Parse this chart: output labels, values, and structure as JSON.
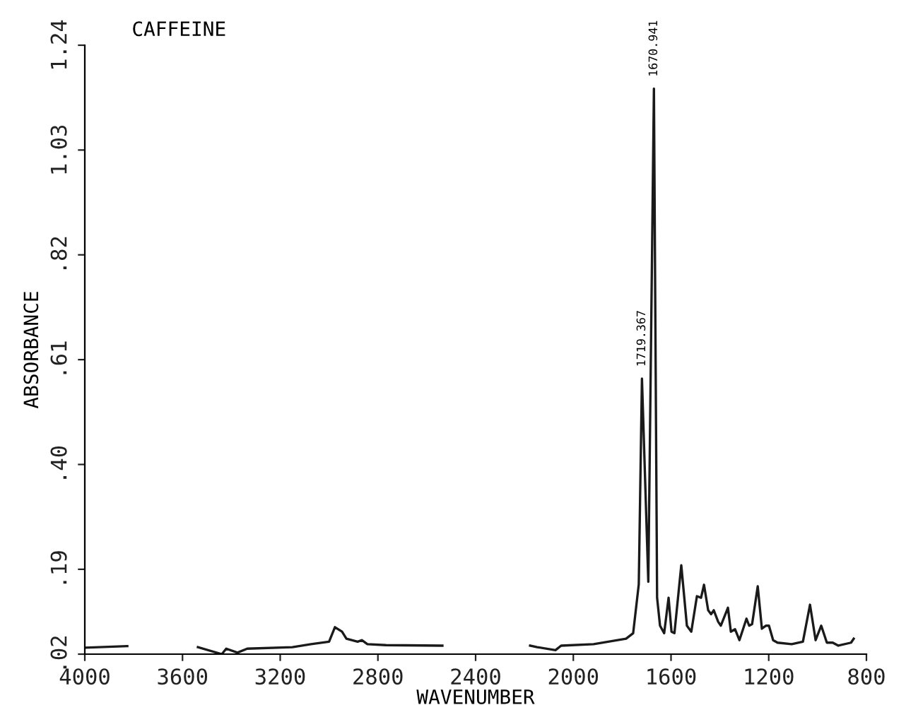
{
  "chart_data": {
    "type": "line",
    "title": "CAFFEINE",
    "xlabel": "WAVENUMBER",
    "ylabel": "ABSORBANCE",
    "xlim": [
      4000,
      800
    ],
    "xticks": [
      {
        "value": 4000,
        "label": "4000"
      },
      3600,
      3200,
      2800,
      2400,
      2000,
      1600,
      1200,
      800
    ],
    "ylim": [
      0.02,
      1.24
    ],
    "yticks": [
      {
        "value": 0.02,
        "label": ".02"
      },
      {
        "value": 0.19,
        "label": ".19"
      },
      {
        "value": 0.4,
        "label": ".40"
      },
      {
        "value": 0.61,
        "label": ".61"
      },
      {
        "value": 0.82,
        "label": ".82"
      },
      {
        "value": 1.03,
        "label": "1.03"
      },
      {
        "value": 1.24,
        "label": "1.24"
      }
    ],
    "grid": false,
    "legend": false,
    "marker": "none",
    "line_style": "solid",
    "annotations": [
      {
        "text": "1719.367",
        "x": 1719,
        "y": 0.572
      },
      {
        "text": "1670.941",
        "x": 1670,
        "y": 1.153
      }
    ],
    "series": [
      {
        "color": "#1a1a1a",
        "x": [
          4000,
          3826,
          3800,
          3537,
          3439,
          3421,
          3375,
          3335,
          3150,
          3074,
          3000,
          2976,
          2947,
          2929,
          2883,
          2866,
          2843,
          2767,
          2536,
          2350,
          2177,
          2148,
          2073,
          2050,
          1917,
          1784,
          1755,
          1732,
          1719,
          1693,
          1670,
          1657,
          1645,
          1628,
          1610,
          1598,
          1586,
          1558,
          1535,
          1517,
          1494,
          1477,
          1465,
          1448,
          1436,
          1425,
          1407,
          1396,
          1367,
          1355,
          1338,
          1320,
          1291,
          1280,
          1268,
          1245,
          1228,
          1211,
          1199,
          1182,
          1164,
          1106,
          1060,
          1031,
          1008,
          985,
          962,
          938,
          915,
          863,
          852
        ],
        "values": [
          0.033,
          0.036,
          null,
          0.034,
          0.02,
          0.031,
          0.023,
          0.031,
          0.034,
          0.04,
          0.045,
          0.074,
          0.065,
          0.051,
          0.045,
          0.048,
          0.04,
          0.038,
          0.037,
          null,
          0.037,
          0.034,
          0.028,
          0.037,
          0.04,
          0.051,
          0.062,
          0.16,
          0.572,
          0.165,
          1.153,
          0.133,
          0.077,
          0.062,
          0.133,
          0.065,
          0.062,
          0.198,
          0.077,
          0.065,
          0.136,
          0.133,
          0.159,
          0.108,
          0.1,
          0.108,
          0.085,
          0.077,
          0.113,
          0.065,
          0.07,
          0.048,
          0.091,
          0.077,
          0.08,
          0.156,
          0.071,
          0.077,
          0.077,
          0.048,
          0.043,
          0.04,
          0.045,
          0.119,
          0.048,
          0.077,
          0.043,
          0.043,
          0.037,
          0.043,
          0.051
        ]
      }
    ]
  }
}
